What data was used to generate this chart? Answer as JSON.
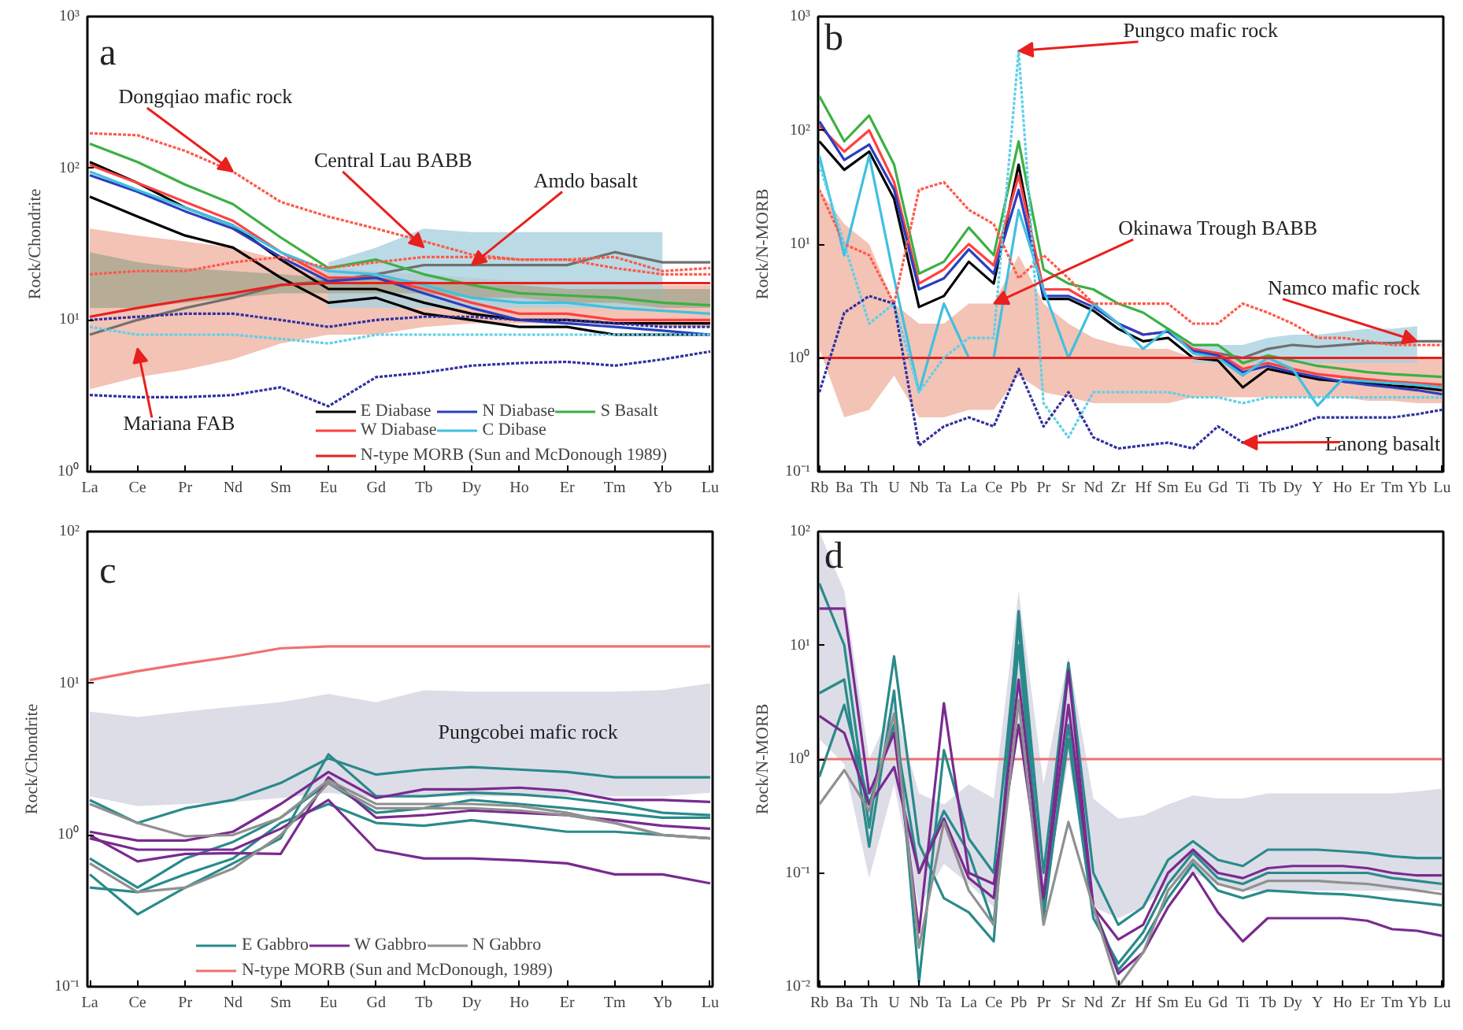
{
  "chart_data": [
    {
      "type": "line",
      "ylabel": "Rock/Chondrite",
      "log": true,
      "grid": false,
      "legend": "bottom right",
      "categories": [
        "La",
        "Ce",
        "Pr",
        "Nd",
        "Sm",
        "Eu",
        "Gd",
        "Tb",
        "Dy",
        "Ho",
        "Er",
        "Tm",
        "Yb",
        "Lu"
      ],
      "ylim": [
        1,
        1000
      ],
      "yticks": [
        {
          "value": 1,
          "label": "10⁰"
        },
        {
          "value": 10,
          "label": "10¹"
        },
        {
          "value": 100,
          "label": "10²"
        },
        {
          "value": 1000,
          "label": "10³"
        }
      ],
      "annotations": [
        "a",
        {
          "text": "Dongqiao mafic rock",
          "x": "Nd",
          "y": 95
        },
        {
          "text": "Central Lau BABB",
          "x": "Tb",
          "y": 30
        },
        {
          "text": "Amdo basalt",
          "x": "Dy",
          "y": 23
        },
        "Mariana FAB"
      ],
      "series": [
        {
          "color": "#f0b4a4",
          "values": [
            null,
            null,
            null,
            null,
            null,
            null,
            null,
            null,
            null,
            null,
            null,
            null,
            null,
            null
          ],
          "upper": [
            40,
            36,
            33,
            30,
            25,
            22,
            21,
            20,
            19,
            18,
            18,
            18,
            17,
            17
          ],
          "lower": [
            3.5,
            4.2,
            4.7,
            5.5,
            7,
            8,
            8,
            9,
            9.5,
            9.5,
            9.5,
            9.5,
            9,
            9
          ]
        },
        {
          "color": "#a9d2e0",
          "values": [
            null,
            null,
            null,
            null,
            null,
            null,
            null,
            null,
            null,
            null,
            null,
            null,
            null,
            null
          ],
          "upper": [
            null,
            null,
            null,
            null,
            null,
            24,
            30,
            40,
            38,
            38,
            38,
            38,
            38,
            null
          ],
          "lower": [
            null,
            null,
            null,
            null,
            null,
            12,
            12,
            12,
            12,
            12,
            12,
            12,
            12,
            null
          ]
        },
        {
          "color": "#a8a890",
          "values": [
            null,
            null,
            null,
            null,
            null,
            null,
            null,
            null,
            null,
            null,
            null,
            null,
            null,
            null
          ],
          "upper": [
            28,
            24,
            22,
            21,
            20,
            19,
            19,
            18,
            17,
            17,
            16,
            16,
            16,
            16
          ],
          "lower": [
            12,
            12,
            13,
            14,
            15,
            15,
            15,
            15,
            14,
            14,
            13,
            13,
            12,
            12
          ]
        },
        {
          "color": "#707070",
          "values": [
            8,
            10,
            12,
            14,
            17,
            18,
            20,
            23,
            23,
            23,
            23,
            28,
            24,
            24
          ]
        },
        {
          "color": "#ff5a4a",
          "line_style": "dotted",
          "values": [
            170,
            165,
            130,
            95,
            60,
            48,
            40,
            33,
            27,
            25,
            25,
            22,
            20,
            20
          ]
        },
        {
          "color": "#ff5a4a",
          "line_style": "dotted",
          "values": [
            20,
            21,
            21,
            24,
            26,
            22,
            24,
            26,
            26,
            25,
            25,
            26,
            21,
            22
          ]
        },
        {
          "color": "#3030a0",
          "line_style": "dotted",
          "values": [
            3.2,
            3.1,
            3.1,
            3.2,
            3.6,
            2.7,
            4.2,
            4.5,
            5,
            5.2,
            5.3,
            5,
            5.5,
            6.2
          ]
        },
        {
          "color": "#3030a0",
          "line_style": "dotted",
          "values": [
            10,
            10.5,
            11,
            11,
            10,
            9,
            10,
            10.5,
            10.5,
            10,
            10,
            9.5,
            9,
            9
          ]
        },
        {
          "color": "#5fd0e8",
          "line_style": "dotted",
          "values": [
            9,
            8,
            8,
            8,
            7.5,
            7,
            8,
            8,
            8,
            8,
            8,
            8,
            8,
            8
          ]
        },
        {
          "name": "E Diabase",
          "color": "#000000",
          "values": [
            110,
            80,
            55,
            42,
            25,
            16,
            16,
            13,
            11,
            10,
            10,
            9.5,
            9.5,
            9.5
          ]
        },
        {
          "color": "#000000",
          "values": [
            65,
            48,
            36,
            30,
            19,
            13,
            14,
            11,
            10,
            9,
            9,
            8,
            8,
            8
          ]
        },
        {
          "name": "W Diabase",
          "color": "#ff4040",
          "values": [
            105,
            80,
            60,
            45,
            28,
            19,
            19,
            16,
            13,
            11,
            11,
            10,
            10,
            10
          ]
        },
        {
          "name": "N Diabase",
          "color": "#2a3fbf",
          "values": [
            90,
            70,
            52,
            40,
            26,
            18,
            19,
            15,
            12,
            10,
            9.5,
            9,
            8.5,
            8
          ]
        },
        {
          "name": "C Dibase",
          "color": "#40c0e0",
          "values": [
            95,
            72,
            55,
            42,
            28,
            21,
            20,
            17,
            14,
            13,
            13,
            12,
            11.5,
            11
          ]
        },
        {
          "name": "S Basalt",
          "color": "#3cb043",
          "values": [
            145,
            110,
            78,
            58,
            35,
            22,
            25,
            20,
            17,
            15,
            14.5,
            14,
            13,
            12.5
          ]
        },
        {
          "name": "N-type MORB (Sun and McDonough 1989)",
          "color": "#e8201e",
          "values": [
            10.5,
            12,
            13.5,
            15,
            17,
            17.5,
            17.5,
            17.5,
            17.5,
            17.5,
            17.5,
            17.5,
            17.5,
            17.5
          ]
        }
      ]
    },
    {
      "type": "line",
      "ylabel": "Rock/N-MORB",
      "log": true,
      "grid": false,
      "categories": [
        "Rb",
        "Ba",
        "Th",
        "U",
        "Nb",
        "Ta",
        "La",
        "Ce",
        "Pb",
        "Pr",
        "Sr",
        "Nd",
        "Zr",
        "Hf",
        "Sm",
        "Eu",
        "Gd",
        "Ti",
        "Tb",
        "Dy",
        "Y",
        "Ho",
        "Er",
        "Tm",
        "Yb",
        "Lu"
      ],
      "ylim": [
        0.1,
        1000
      ],
      "yticks": [
        {
          "value": 0.1,
          "label": "10⁻¹"
        },
        {
          "value": 1,
          "label": "10⁰"
        },
        {
          "value": 10,
          "label": "10¹"
        },
        {
          "value": 100,
          "label": "10²"
        },
        {
          "value": 1000,
          "label": "10³"
        }
      ],
      "annotations": [
        "b",
        {
          "text": "Pungco mafic rock",
          "x": "Pb",
          "y": 500
        },
        {
          "text": "Okinawa Trough  BABB",
          "x": "Ce",
          "y": 3
        },
        {
          "text": "Namco mafic rock",
          "x": "Yb",
          "y": 1.4
        },
        {
          "text": "Lanong basalt",
          "x": "Ti",
          "y": 0.18
        }
      ],
      "series": [
        {
          "color": "#f0b4a4",
          "values": [
            null,
            null,
            null,
            null,
            null,
            null,
            null,
            null,
            null,
            null,
            null,
            null,
            null,
            null,
            null,
            null,
            null,
            null,
            null,
            null,
            null,
            null,
            null,
            null,
            null,
            null
          ],
          "upper": [
            30,
            15,
            10,
            3,
            2,
            2,
            3,
            3,
            8,
            3,
            2,
            1.5,
            1.3,
            1.2,
            1.2,
            1,
            1,
            1,
            1,
            1,
            1,
            1,
            1,
            1,
            1,
            1
          ],
          "lower": [
            1.2,
            0.3,
            0.35,
            0.7,
            0.3,
            0.3,
            0.35,
            0.35,
            0.7,
            0.5,
            0.45,
            0.4,
            0.4,
            0.4,
            0.4,
            0.45,
            0.45,
            0.45,
            0.45,
            0.45,
            0.45,
            0.45,
            0.42,
            0.42,
            0.4,
            0.4
          ]
        },
        {
          "color": "#a9d2e0",
          "values": [
            null,
            null,
            null,
            null,
            null,
            null,
            null,
            null,
            null,
            null,
            null,
            null,
            null,
            null,
            null,
            null,
            null,
            null,
            null,
            null,
            null,
            null,
            null,
            null,
            null,
            null
          ],
          "upper": [
            null,
            null,
            null,
            null,
            null,
            null,
            null,
            null,
            null,
            null,
            null,
            null,
            null,
            null,
            null,
            1.3,
            1.3,
            1.3,
            1.5,
            1.6,
            1.6,
            1.7,
            1.8,
            1.8,
            1.9,
            null
          ],
          "lower": [
            null,
            null,
            null,
            null,
            null,
            null,
            null,
            null,
            null,
            null,
            null,
            null,
            null,
            null,
            null,
            0.9,
            0.9,
            0.9,
            0.9,
            0.9,
            0.9,
            0.9,
            0.9,
            0.9,
            0.9,
            null
          ]
        },
        {
          "color": "#707070",
          "values": [
            null,
            null,
            null,
            null,
            null,
            null,
            null,
            null,
            null,
            null,
            null,
            null,
            null,
            null,
            null,
            1.1,
            1.1,
            1.0,
            1.2,
            1.3,
            1.25,
            1.3,
            1.35,
            1.35,
            1.4,
            1.4
          ]
        },
        {
          "color": "#ff5a4a",
          "line_style": "dotted",
          "values": [
            30,
            10,
            8,
            3,
            30,
            35,
            20,
            15,
            5,
            8,
            5,
            3,
            3,
            3,
            3,
            2,
            2,
            3,
            2.5,
            2,
            1.5,
            1.5,
            1.4,
            1.3,
            1.3,
            1.3
          ]
        },
        {
          "color": "#5fd0e8",
          "line_style": "dotted",
          "values": [
            50,
            10,
            2,
            3,
            0.5,
            1,
            1.5,
            1.5,
            500,
            0.4,
            0.2,
            0.5,
            0.5,
            0.5,
            0.5,
            0.45,
            0.45,
            0.4,
            0.45,
            0.45,
            0.45,
            0.45,
            0.45,
            0.45,
            0.45,
            0.45
          ]
        },
        {
          "color": "#3030a0",
          "line_style": "dotted",
          "values": [
            0.5,
            2.5,
            3.5,
            3,
            0.17,
            0.25,
            0.3,
            0.25,
            0.8,
            0.25,
            0.5,
            0.2,
            0.16,
            0.17,
            0.18,
            0.16,
            0.25,
            0.18,
            0.22,
            0.25,
            0.3,
            0.3,
            0.3,
            0.3,
            0.32,
            0.35
          ]
        },
        {
          "color": "#000000",
          "values": [
            80,
            45,
            65,
            25,
            2.8,
            3.5,
            7,
            4.5,
            50,
            3.3,
            3.3,
            2.6,
            1.8,
            1.4,
            1.5,
            1.0,
            0.95,
            0.55,
            0.8,
            0.72,
            0.65,
            0.62,
            0.6,
            0.57,
            0.55,
            0.52
          ]
        },
        {
          "color": "#ff4040",
          "values": [
            110,
            65,
            100,
            35,
            4.5,
            6,
            10,
            6.5,
            40,
            4,
            4,
            3,
            2,
            1.6,
            1.7,
            1.2,
            1.1,
            0.8,
            0.9,
            0.8,
            0.72,
            0.68,
            0.65,
            0.62,
            0.6,
            0.58
          ]
        },
        {
          "color": "#2a3fbf",
          "values": [
            120,
            55,
            75,
            30,
            4,
            5,
            9,
            5.5,
            30,
            3.5,
            3.5,
            2.8,
            2,
            1.6,
            1.7,
            1.15,
            1.05,
            0.75,
            0.85,
            0.75,
            0.68,
            0.62,
            0.58,
            0.55,
            0.52,
            0.48
          ]
        },
        {
          "color": "#40c0e0",
          "values": [
            60,
            8,
            60,
            5,
            0.5,
            3,
            1,
            1,
            20,
            4,
            1,
            3,
            2,
            1.2,
            1.8,
            1.1,
            1,
            0.7,
            1,
            0.8,
            0.38,
            0.65,
            0.62,
            0.6,
            0.58,
            0.55
          ]
        },
        {
          "color": "#3cb043",
          "values": [
            200,
            80,
            135,
            50,
            5.5,
            7,
            14,
            8,
            80,
            6,
            4.5,
            4,
            3,
            2.5,
            1.8,
            1.3,
            1.3,
            0.9,
            1.05,
            0.95,
            0.85,
            0.8,
            0.75,
            0.72,
            0.7,
            0.68
          ]
        },
        {
          "color": "#e8201e",
          "values": [
            1,
            1,
            1,
            1,
            1,
            1,
            1,
            1,
            1,
            1,
            1,
            1,
            1,
            1,
            1,
            1,
            1,
            1,
            1,
            1,
            1,
            1,
            1,
            1,
            1,
            1
          ]
        }
      ]
    },
    {
      "type": "line",
      "ylabel": "Rock/Chondrite",
      "log": true,
      "grid": false,
      "legend": "bottom",
      "categories": [
        "La",
        "Ce",
        "Pr",
        "Nd",
        "Sm",
        "Eu",
        "Gd",
        "Tb",
        "Dy",
        "Ho",
        "Er",
        "Tm",
        "Yb",
        "Lu"
      ],
      "ylim": [
        0.1,
        100
      ],
      "yticks": [
        {
          "value": 0.1,
          "label": "10⁻¹"
        },
        {
          "value": 1,
          "label": "10⁰"
        },
        {
          "value": 10,
          "label": "10¹"
        },
        {
          "value": 100,
          "label": "10²"
        }
      ],
      "annotations": [
        "c",
        "Pungcobei mafic rock"
      ],
      "series": [
        {
          "color": "#d4d4e2",
          "values": [
            null,
            null,
            null,
            null,
            null,
            null,
            null,
            null,
            null,
            null,
            null,
            null,
            null,
            null
          ],
          "upper": [
            6.5,
            6,
            6.5,
            7,
            7.5,
            8.5,
            7.5,
            9,
            8.8,
            8.8,
            8.8,
            8.8,
            9,
            10
          ],
          "lower": [
            1.8,
            1.55,
            1.6,
            1.65,
            1.75,
            1.9,
            1.75,
            1.8,
            1.8,
            1.8,
            1.8,
            1.8,
            1.8,
            1.9
          ]
        },
        {
          "name": "E Gabbro",
          "color": "#2a8a8a",
          "values": [
            1.7,
            1.2,
            1.5,
            1.7,
            2.2,
            3.2,
            2.5,
            2.7,
            2.8,
            2.7,
            2.6,
            2.4,
            2.4,
            2.4
          ]
        },
        {
          "color": "#2a8a8a",
          "values": [
            0.55,
            0.3,
            0.45,
            0.65,
            0.95,
            3.4,
            1.8,
            1.8,
            1.9,
            1.85,
            1.75,
            1.6,
            1.4,
            1.35
          ]
        },
        {
          "color": "#2a8a8a",
          "values": [
            0.45,
            0.42,
            0.55,
            0.7,
            1.2,
            1.6,
            1.2,
            1.15,
            1.25,
            1.15,
            1.05,
            1.05,
            1.0,
            0.95
          ]
        },
        {
          "color": "#2a8a8a",
          "values": [
            0.7,
            0.45,
            0.7,
            0.9,
            1.3,
            2.2,
            1.4,
            1.5,
            1.7,
            1.6,
            1.5,
            1.4,
            1.3,
            1.3
          ]
        },
        {
          "name": "W Gabbro",
          "color": "#7a2a90",
          "values": [
            1.05,
            0.92,
            0.92,
            1.05,
            1.6,
            2.6,
            1.75,
            2.0,
            2.0,
            2.05,
            1.95,
            1.7,
            1.7,
            1.65
          ]
        },
        {
          "color": "#7a2a90",
          "values": [
            0.95,
            0.8,
            0.8,
            0.8,
            1.1,
            1.7,
            0.8,
            0.7,
            0.7,
            0.68,
            0.65,
            0.55,
            0.55,
            0.48
          ]
        },
        {
          "color": "#7a2a90",
          "values": [
            1.0,
            0.67,
            0.75,
            0.76,
            0.75,
            2.4,
            1.3,
            1.35,
            1.45,
            1.4,
            1.35,
            1.25,
            1.15,
            1.1
          ]
        },
        {
          "name": "N Gabbro",
          "color": "#909090",
          "values": [
            1.6,
            1.2,
            0.98,
            1.0,
            1.3,
            2.3,
            1.6,
            1.6,
            1.6,
            1.55,
            1.4,
            1.2,
            1.0,
            0.95
          ]
        },
        {
          "color": "#909090",
          "values": [
            0.65,
            0.42,
            0.45,
            0.6,
            1.0,
            2.2,
            1.5,
            1.5,
            1.5,
            1.45,
            1.35,
            1.2,
            1.0,
            0.95
          ]
        },
        {
          "name": "N-type MORB (Sun and McDonough, 1989)",
          "color": "#f07070",
          "values": [
            10.5,
            12,
            13.5,
            15,
            17,
            17.5,
            17.5,
            17.5,
            17.5,
            17.5,
            17.5,
            17.5,
            17.5,
            17.5
          ]
        }
      ]
    },
    {
      "type": "line",
      "ylabel": "Rock/N-MORB",
      "log": true,
      "grid": false,
      "categories": [
        "Rb",
        "Ba",
        "Th",
        "U",
        "Nb",
        "Ta",
        "La",
        "Ce",
        "Pb",
        "Pr",
        "Sr",
        "Nd",
        "Zr",
        "Hf",
        "Sm",
        "Eu",
        "Gd",
        "Ti",
        "Tb",
        "Dy",
        "Y",
        "Ho",
        "Er",
        "Tm",
        "Yb",
        "Lu"
      ],
      "ylim": [
        0.01,
        100
      ],
      "yticks": [
        {
          "value": 0.01,
          "label": "10⁻²"
        },
        {
          "value": 0.1,
          "label": "10⁻¹"
        },
        {
          "value": 1,
          "label": "10⁰"
        },
        {
          "value": 10,
          "label": "10¹"
        },
        {
          "value": 100,
          "label": "10²"
        }
      ],
      "annotations": [
        "d"
      ],
      "series": [
        {
          "color": "#d4d4e2",
          "values": [
            null,
            null,
            null,
            null,
            null,
            null,
            null,
            null,
            null,
            null,
            null,
            null,
            null,
            null,
            null,
            null,
            null,
            null,
            null,
            null,
            null,
            null,
            null,
            null,
            null,
            null
          ],
          "upper": [
            100,
            30,
            1.0,
            3,
            0.5,
            0.4,
            0.6,
            0.45,
            30,
            0.6,
            8,
            0.45,
            0.3,
            0.32,
            0.4,
            0.48,
            0.45,
            0.45,
            0.5,
            0.5,
            0.5,
            0.5,
            0.5,
            0.5,
            0.52,
            0.55
          ],
          "lower": [
            1.5,
            0.9,
            0.09,
            0.6,
            0.05,
            0.12,
            0.08,
            0.05,
            2,
            0.05,
            1,
            0.05,
            0.04,
            0.05,
            0.08,
            0.1,
            0.08,
            0.07,
            0.07,
            0.07,
            0.07,
            0.07,
            0.07,
            0.07,
            0.07,
            0.07
          ]
        },
        {
          "color": "#f07070",
          "values": [
            1,
            1,
            1,
            1,
            1,
            1,
            1,
            1,
            1,
            1,
            1,
            1,
            1,
            1,
            1,
            1,
            1,
            1,
            1,
            1,
            1,
            1,
            1,
            1,
            1,
            1
          ]
        },
        {
          "color": "#2a8a8a",
          "values": [
            35,
            10,
            0.25,
            8,
            0.18,
            0.06,
            0.045,
            0.025,
            20,
            0.1,
            7,
            0.1,
            0.035,
            0.05,
            0.13,
            0.19,
            0.13,
            0.115,
            0.16,
            0.16,
            0.16,
            0.155,
            0.15,
            0.14,
            0.135,
            0.135
          ]
        },
        {
          "color": "#2a8a8a",
          "values": [
            3.8,
            5,
            0.17,
            4,
            0.011,
            1.2,
            0.2,
            0.1,
            15,
            0.05,
            1.5,
            0.04,
            0.016,
            0.03,
            0.08,
            0.15,
            0.09,
            0.08,
            0.1,
            0.1,
            0.1,
            0.1,
            0.1,
            0.09,
            0.085,
            0.08
          ]
        },
        {
          "color": "#2a8a8a",
          "values": [
            0.7,
            3,
            0.4,
            2,
            0.1,
            0.35,
            0.15,
            0.035,
            10,
            0.04,
            2,
            0.05,
            0.014,
            0.025,
            0.06,
            0.12,
            0.07,
            0.06,
            0.07,
            0.068,
            0.066,
            0.065,
            0.062,
            0.058,
            0.055,
            0.052
          ]
        },
        {
          "color": "#7a2a90",
          "values": [
            21,
            21,
            0.5,
            1.7,
            0.03,
            3.1,
            0.1,
            0.08,
            2,
            0.06,
            6,
            0.05,
            0.026,
            0.035,
            0.1,
            0.16,
            0.1,
            0.09,
            0.11,
            0.115,
            0.115,
            0.115,
            0.11,
            0.1,
            0.095,
            0.095
          ]
        },
        {
          "color": "#7a2a90",
          "values": [
            2.4,
            1.7,
            0.4,
            0.85,
            0.1,
            0.3,
            0.09,
            0.06,
            5,
            0.06,
            3,
            0.05,
            0.013,
            0.02,
            0.05,
            0.1,
            0.045,
            0.025,
            0.04,
            0.04,
            0.04,
            0.04,
            0.038,
            0.032,
            0.031,
            0.028
          ]
        },
        {
          "color": "#909090",
          "values": [
            0.4,
            0.8,
            0.35,
            2.5,
            0.022,
            0.28,
            0.07,
            0.035,
            3.3,
            0.035,
            0.28,
            0.05,
            0.01,
            0.02,
            0.07,
            0.13,
            0.08,
            0.07,
            0.085,
            0.085,
            0.085,
            0.082,
            0.08,
            0.075,
            0.07,
            0.065
          ]
        }
      ]
    }
  ]
}
